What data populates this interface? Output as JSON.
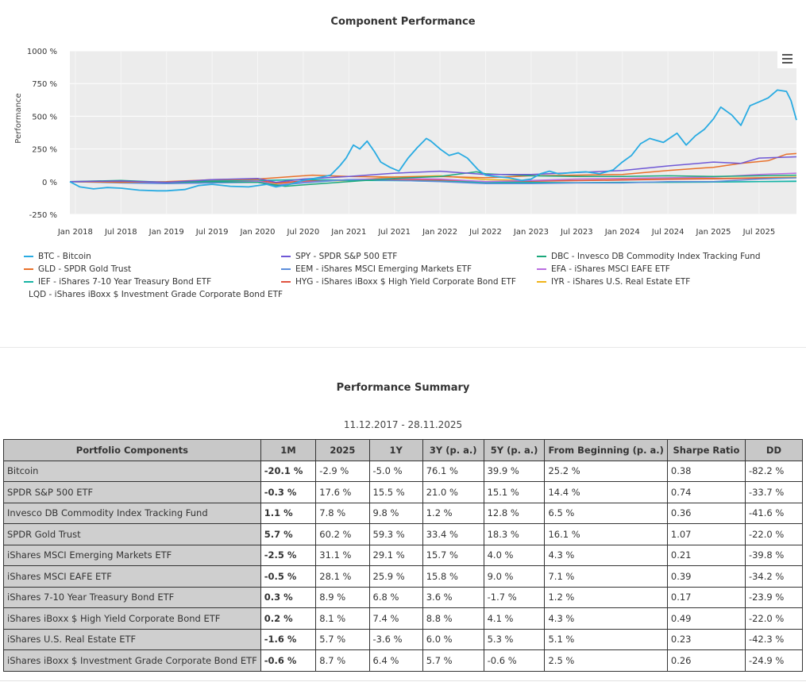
{
  "chart_data": {
    "type": "line",
    "title": "Component Performance",
    "ylabel": "Performance",
    "xlabel": "",
    "ylim": [
      -250,
      1000
    ],
    "xlim": [
      2017.94,
      2025.91
    ],
    "yticks": [
      -250,
      0,
      250,
      500,
      750,
      1000
    ],
    "ytick_labels": [
      "-250 %",
      "0 %",
      "250 %",
      "500 %",
      "750 %",
      "1000 %"
    ],
    "xtick_positions": [
      2018.0,
      2018.5,
      2019.0,
      2019.5,
      2020.0,
      2020.5,
      2021.0,
      2021.5,
      2022.0,
      2022.5,
      2023.0,
      2023.5,
      2024.0,
      2024.5,
      2025.0,
      2025.5
    ],
    "xtick_labels": [
      "Jan 2018",
      "Jul 2018",
      "Jan 2019",
      "Jul 2019",
      "Jan 2020",
      "Jul 2020",
      "Jan 2021",
      "Jul 2021",
      "Jan 2022",
      "Jul 2022",
      "Jan 2023",
      "Jul 2023",
      "Jan 2024",
      "Jul 2024",
      "Jan 2025",
      "Jul 2025"
    ],
    "grid": true,
    "legend_position": "bottom",
    "series": [
      {
        "name": "BTC - Bitcoin",
        "color": "#29abe2",
        "x": [
          2017.94,
          2018.05,
          2018.2,
          2018.35,
          2018.5,
          2018.7,
          2018.9,
          2019.0,
          2019.2,
          2019.35,
          2019.5,
          2019.7,
          2019.9,
          2020.1,
          2020.2,
          2020.35,
          2020.5,
          2020.7,
          2020.8,
          2020.9,
          2020.97,
          2021.05,
          2021.12,
          2021.2,
          2021.28,
          2021.35,
          2021.45,
          2021.55,
          2021.65,
          2021.75,
          2021.85,
          2021.9,
          2022.0,
          2022.1,
          2022.2,
          2022.3,
          2022.42,
          2022.5,
          2022.6,
          2022.75,
          2022.9,
          2023.0,
          2023.1,
          2023.2,
          2023.3,
          2023.45,
          2023.6,
          2023.75,
          2023.9,
          2024.0,
          2024.1,
          2024.2,
          2024.3,
          2024.45,
          2024.6,
          2024.7,
          2024.8,
          2024.9,
          2025.0,
          2025.08,
          2025.2,
          2025.3,
          2025.4,
          2025.5,
          2025.6,
          2025.7,
          2025.8,
          2025.85,
          2025.91
        ],
        "values": [
          0,
          -40,
          -55,
          -45,
          -50,
          -65,
          -70,
          -70,
          -60,
          -30,
          -20,
          -35,
          -40,
          -20,
          -40,
          -20,
          10,
          35,
          50,
          120,
          180,
          280,
          250,
          310,
          230,
          150,
          110,
          80,
          180,
          260,
          330,
          310,
          250,
          200,
          220,
          180,
          90,
          50,
          40,
          30,
          10,
          20,
          60,
          80,
          60,
          70,
          75,
          60,
          90,
          150,
          200,
          290,
          330,
          300,
          370,
          280,
          350,
          400,
          480,
          570,
          510,
          430,
          580,
          610,
          640,
          700,
          690,
          620,
          470
        ]
      },
      {
        "name": "SPY - SPDR S&P 500 ETF",
        "color": "#6f58d6",
        "x": [
          2017.94,
          2018.5,
          2019.0,
          2019.5,
          2020.0,
          2020.2,
          2020.5,
          2021.0,
          2021.5,
          2022.0,
          2022.5,
          2023.0,
          2023.5,
          2024.0,
          2024.5,
          2025.0,
          2025.3,
          2025.5,
          2025.91
        ],
        "values": [
          0,
          5,
          -5,
          15,
          25,
          -5,
          20,
          40,
          65,
          80,
          55,
          55,
          70,
          85,
          120,
          150,
          140,
          180,
          190
        ]
      },
      {
        "name": "DBC - Invesco DB Commodity Index Tracking Fund",
        "color": "#1ba87b",
        "x": [
          2017.94,
          2018.5,
          2019.0,
          2019.5,
          2020.0,
          2020.3,
          2020.5,
          2021.0,
          2021.5,
          2022.0,
          2022.4,
          2022.5,
          2023.0,
          2023.5,
          2024.0,
          2024.5,
          2025.0,
          2025.5,
          2025.91
        ],
        "values": [
          0,
          10,
          -5,
          0,
          -5,
          -35,
          -25,
          0,
          25,
          40,
          75,
          60,
          45,
          40,
          40,
          45,
          40,
          45,
          50
        ]
      },
      {
        "name": "GLD - SPDR Gold Trust",
        "color": "#e8702a",
        "x": [
          2017.94,
          2018.5,
          2019.0,
          2019.5,
          2020.0,
          2020.6,
          2021.0,
          2021.5,
          2022.0,
          2022.5,
          2023.0,
          2023.5,
          2024.0,
          2024.5,
          2025.0,
          2025.3,
          2025.6,
          2025.8,
          2025.91
        ],
        "values": [
          0,
          -5,
          0,
          15,
          20,
          50,
          40,
          35,
          40,
          30,
          45,
          50,
          55,
          85,
          110,
          140,
          160,
          210,
          215
        ]
      },
      {
        "name": "EEM - iShares MSCI Emerging Markets ETF",
        "color": "#5b8ddb",
        "x": [
          2017.94,
          2018.5,
          2019.0,
          2019.5,
          2020.0,
          2020.2,
          2020.5,
          2021.0,
          2021.5,
          2022.0,
          2022.5,
          2023.0,
          2023.5,
          2024.0,
          2024.5,
          2025.0,
          2025.5,
          2025.91
        ],
        "values": [
          0,
          -10,
          -15,
          -10,
          -5,
          -30,
          -10,
          15,
          10,
          0,
          -15,
          -15,
          -10,
          -10,
          0,
          0,
          20,
          30
        ]
      },
      {
        "name": "EFA - iShares MSCI EAFE ETF",
        "color": "#b96de0",
        "x": [
          2017.94,
          2018.5,
          2019.0,
          2019.5,
          2020.0,
          2020.2,
          2020.5,
          2021.0,
          2021.5,
          2022.0,
          2022.5,
          2023.0,
          2023.5,
          2024.0,
          2024.5,
          2025.0,
          2025.5,
          2025.91
        ],
        "values": [
          0,
          -5,
          -15,
          -5,
          5,
          -25,
          -5,
          15,
          25,
          20,
          0,
          10,
          20,
          25,
          30,
          35,
          55,
          65
        ]
      },
      {
        "name": "IEF - iShares 7-10 Year Treasury Bond ETF",
        "color": "#17b3a3",
        "x": [
          2017.94,
          2018.5,
          2019.0,
          2019.5,
          2020.0,
          2020.5,
          2021.0,
          2021.5,
          2022.0,
          2022.5,
          2023.0,
          2023.5,
          2024.0,
          2024.5,
          2025.0,
          2025.5,
          2025.91
        ],
        "values": [
          0,
          -5,
          -3,
          5,
          8,
          15,
          10,
          8,
          3,
          -5,
          -5,
          -8,
          -5,
          -5,
          -3,
          0,
          2
        ]
      },
      {
        "name": "HYG - iShares iBoxx $ High Yield Corporate Bond ETF",
        "color": "#e0523f",
        "x": [
          2017.94,
          2018.5,
          2019.0,
          2019.5,
          2020.0,
          2020.2,
          2020.5,
          2021.0,
          2021.5,
          2022.0,
          2022.5,
          2023.0,
          2023.5,
          2024.0,
          2024.5,
          2025.0,
          2025.5,
          2025.91
        ],
        "values": [
          0,
          -2,
          -3,
          5,
          10,
          -10,
          5,
          12,
          15,
          12,
          0,
          3,
          8,
          12,
          18,
          22,
          28,
          30
        ]
      },
      {
        "name": "IYR - iShares U.S. Real Estate ETF",
        "color": "#f0b419",
        "x": [
          2017.94,
          2018.5,
          2019.0,
          2019.5,
          2020.0,
          2020.2,
          2020.5,
          2021.0,
          2021.5,
          2022.0,
          2022.5,
          2023.0,
          2023.5,
          2024.0,
          2024.5,
          2025.0,
          2025.5,
          2025.91
        ],
        "values": [
          0,
          -2,
          -5,
          10,
          20,
          -15,
          0,
          10,
          35,
          45,
          15,
          10,
          10,
          15,
          25,
          25,
          30,
          35
        ]
      },
      {
        "name": "LQD - iShares iBoxx $ Investment Grade Corporate Bond ETF",
        "color": "#45cbd9",
        "x": [
          2017.94,
          2018.5,
          2019.0,
          2019.5,
          2020.0,
          2020.5,
          2021.0,
          2021.5,
          2022.0,
          2022.5,
          2023.0,
          2023.5,
          2024.0,
          2024.5,
          2025.0,
          2025.5,
          2025.91
        ],
        "values": [
          0,
          -5,
          -5,
          5,
          10,
          15,
          12,
          12,
          8,
          -10,
          -8,
          -8,
          -5,
          -3,
          -3,
          0,
          5
        ]
      }
    ]
  },
  "summary": {
    "title": "Performance Summary",
    "date_range": "11.12.2017 - 28.11.2025",
    "headers": [
      "Portfolio Components",
      "1M",
      "2025",
      "1Y",
      "3Y (p. a.)",
      "5Y (p. a.)",
      "From Beginning (p. a.)",
      "Sharpe Ratio",
      "DD"
    ],
    "rows": [
      [
        "Bitcoin",
        "-20.1 %",
        "-2.9 %",
        "-5.0 %",
        "76.1 %",
        "39.9 %",
        "25.2 %",
        "0.38",
        "-82.2 %"
      ],
      [
        "SPDR S&P 500 ETF",
        "-0.3 %",
        "17.6 %",
        "15.5 %",
        "21.0 %",
        "15.1 %",
        "14.4 %",
        "0.74",
        "-33.7 %"
      ],
      [
        "Invesco DB Commodity Index Tracking Fund",
        "1.1 %",
        "7.8 %",
        "9.8 %",
        "1.2 %",
        "12.8 %",
        "6.5 %",
        "0.36",
        "-41.6 %"
      ],
      [
        "SPDR Gold Trust",
        "5.7 %",
        "60.2 %",
        "59.3 %",
        "33.4 %",
        "18.3 %",
        "16.1 %",
        "1.07",
        "-22.0 %"
      ],
      [
        "iShares MSCI Emerging Markets ETF",
        "-2.5 %",
        "31.1 %",
        "29.1 %",
        "15.7 %",
        "4.0 %",
        "4.3 %",
        "0.21",
        "-39.8 %"
      ],
      [
        "iShares MSCI EAFE ETF",
        "-0.5 %",
        "28.1 %",
        "25.9 %",
        "15.8 %",
        "9.0 %",
        "7.1 %",
        "0.39",
        "-34.2 %"
      ],
      [
        "iShares 7-10 Year Treasury Bond ETF",
        "0.3 %",
        "8.9 %",
        "6.8 %",
        "3.6 %",
        "-1.7 %",
        "1.2 %",
        "0.17",
        "-23.9 %"
      ],
      [
        "iShares iBoxx $ High Yield Corporate Bond ETF",
        "0.2 %",
        "8.1 %",
        "7.4 %",
        "8.8 %",
        "4.1 %",
        "4.3 %",
        "0.49",
        "-22.0 %"
      ],
      [
        "iShares U.S. Real Estate ETF",
        "-1.6 %",
        "5.7 %",
        "-3.6 %",
        "6.0 %",
        "5.3 %",
        "5.1 %",
        "0.23",
        "-42.3 %"
      ],
      [
        "iShares iBoxx $ Investment Grade Corporate Bond ETF",
        "-0.6 %",
        "8.7 %",
        "6.4 %",
        "5.7 %",
        "-0.6 %",
        "2.5 %",
        "0.26",
        "-24.9 %"
      ]
    ]
  }
}
